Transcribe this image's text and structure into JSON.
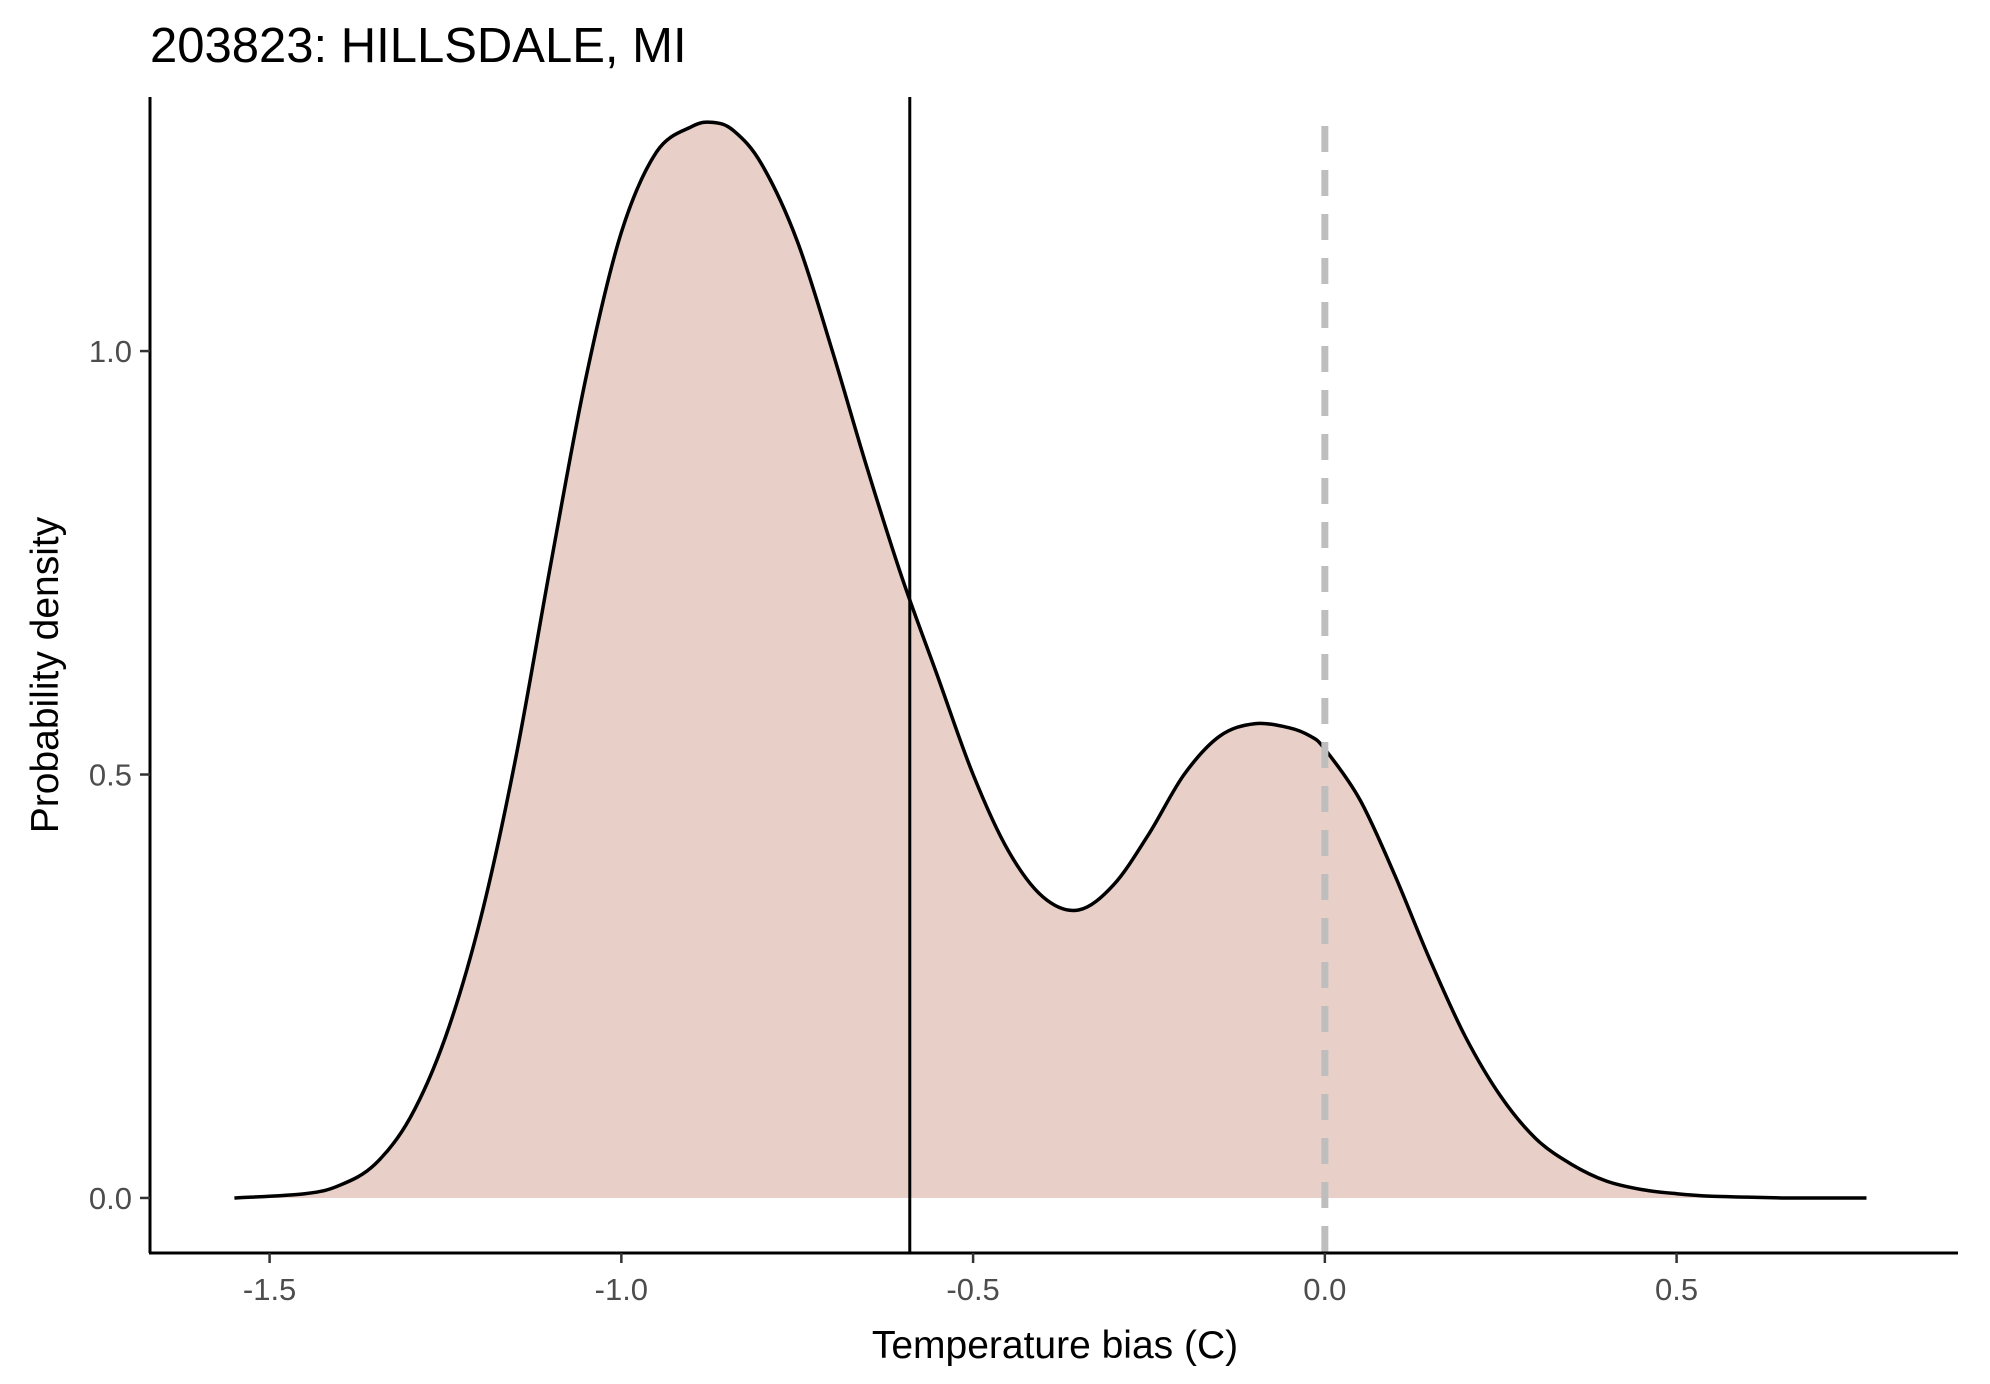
{
  "chart_data": {
    "type": "area",
    "title": "203823: HILLSDALE, MI",
    "xlabel": "Temperature bias (C)",
    "ylabel": "Probability density",
    "xlim": [
      -1.67,
      0.9
    ],
    "ylim": [
      -0.065,
      1.3
    ],
    "x_ticks": [
      -1.5,
      -1.0,
      -0.5,
      0.0,
      0.5
    ],
    "x_tick_labels": [
      "-1.5",
      "-1.0",
      "-0.5",
      "0.0",
      "0.5"
    ],
    "y_ticks": [
      0.0,
      0.5,
      1.0
    ],
    "y_tick_labels": [
      "0.0",
      "0.5",
      "1.0"
    ],
    "grid": false,
    "density": {
      "x": [
        -1.55,
        -1.45,
        -1.4,
        -1.35,
        -1.3,
        -1.25,
        -1.2,
        -1.15,
        -1.1,
        -1.05,
        -1.0,
        -0.95,
        -0.9,
        -0.87,
        -0.84,
        -0.8,
        -0.75,
        -0.7,
        -0.65,
        -0.6,
        -0.55,
        -0.5,
        -0.45,
        -0.4,
        -0.35,
        -0.3,
        -0.25,
        -0.2,
        -0.15,
        -0.1,
        -0.05,
        -0.02,
        0.0,
        0.05,
        0.1,
        0.15,
        0.2,
        0.25,
        0.3,
        0.35,
        0.4,
        0.45,
        0.5,
        0.55,
        0.6,
        0.65,
        0.7,
        0.77
      ],
      "y": [
        0.0,
        0.005,
        0.015,
        0.04,
        0.095,
        0.19,
        0.33,
        0.52,
        0.75,
        0.97,
        1.14,
        1.235,
        1.265,
        1.27,
        1.26,
        1.22,
        1.13,
        1.0,
        0.86,
        0.73,
        0.615,
        0.5,
        0.41,
        0.355,
        0.34,
        0.37,
        0.43,
        0.5,
        0.545,
        0.56,
        0.555,
        0.545,
        0.53,
        0.47,
        0.38,
        0.28,
        0.19,
        0.12,
        0.07,
        0.04,
        0.02,
        0.01,
        0.005,
        0.002,
        0.001,
        0.0,
        0.0,
        0.0
      ],
      "fill_color": "#e8cfc8",
      "line_color": "#000000"
    },
    "reference_lines": [
      {
        "x": -0.59,
        "style": "solid",
        "color": "#000000"
      },
      {
        "x": 0.0,
        "style": "dashed",
        "color": "#bebebe"
      }
    ]
  }
}
